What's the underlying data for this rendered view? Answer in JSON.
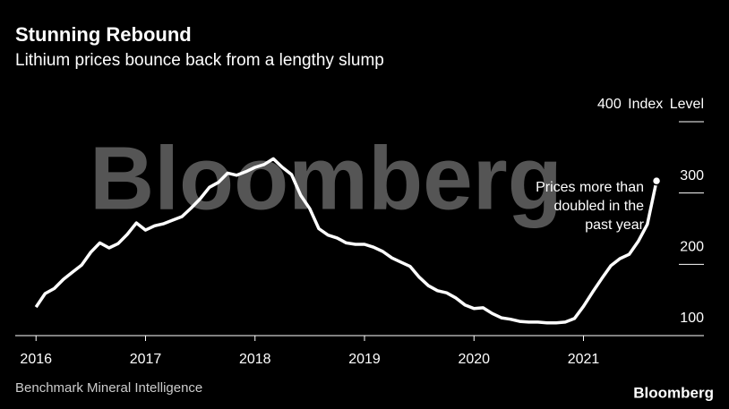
{
  "chart_data": {
    "type": "line",
    "title": "Stunning Rebound",
    "subtitle": "Lithium prices bounce back from a lengthy slump",
    "watermark": "Bloomberg",
    "annotation": [
      "Prices more than",
      "doubled in the",
      "past year"
    ],
    "source": "Benchmark Mineral Intelligence",
    "logo": "Bloomberg",
    "x": [
      2016.0,
      2016.083,
      2016.167,
      2016.25,
      2016.333,
      2016.417,
      2016.5,
      2016.583,
      2016.667,
      2016.75,
      2016.833,
      2016.917,
      2017.0,
      2017.083,
      2017.167,
      2017.25,
      2017.333,
      2017.417,
      2017.5,
      2017.583,
      2017.667,
      2017.75,
      2017.833,
      2017.917,
      2018.0,
      2018.083,
      2018.167,
      2018.25,
      2018.333,
      2018.417,
      2018.5,
      2018.583,
      2018.667,
      2018.75,
      2018.833,
      2018.917,
      2019.0,
      2019.083,
      2019.167,
      2019.25,
      2019.333,
      2019.417,
      2019.5,
      2019.583,
      2019.667,
      2019.75,
      2019.833,
      2019.917,
      2020.0,
      2020.083,
      2020.167,
      2020.25,
      2020.333,
      2020.417,
      2020.5,
      2020.583,
      2020.667,
      2020.75,
      2020.833,
      2020.917,
      2021.0,
      2021.083,
      2021.167,
      2021.25,
      2021.333,
      2021.417,
      2021.5,
      2021.583,
      2021.667
    ],
    "series": [
      {
        "color": "#ffffff",
        "values": [
          140,
          159,
          166,
          179,
          189,
          199,
          217,
          230,
          223,
          229,
          242,
          258,
          248,
          254,
          257,
          262,
          267,
          279,
          292,
          308,
          315,
          328,
          325,
          330,
          336,
          340,
          348,
          336,
          326,
          297,
          278,
          250,
          241,
          237,
          230,
          228,
          228,
          224,
          218,
          209,
          203,
          197,
          182,
          170,
          163,
          160,
          153,
          143,
          138,
          139,
          131,
          125,
          123,
          120,
          119,
          119,
          118,
          118,
          119,
          124,
          141,
          161,
          180,
          198,
          208,
          214,
          232,
          256,
          317
        ]
      }
    ],
    "xlim": [
      2015.81,
      2022.1
    ],
    "xticks": [
      2016,
      2017,
      2018,
      2019,
      2020,
      2021
    ],
    "ylim": [
      100,
      400
    ],
    "yticks": [
      100,
      200,
      300,
      {
        "value": 400,
        "label": "400 Index Level"
      }
    ]
  }
}
